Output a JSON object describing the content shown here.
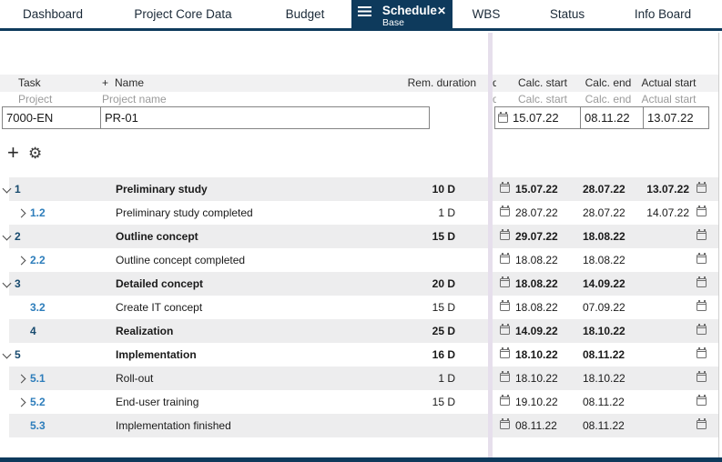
{
  "colors": {
    "navy": "#0e3a5c",
    "splitter": "#e6dfec",
    "row_alt": "#ededee",
    "id_parent_blue": "#174a6e",
    "id_child_blue": "#2d7dbb"
  },
  "icons": {
    "menu": "menu",
    "close": "✕",
    "add": "+",
    "settings": "⚙",
    "calendar": "calendar",
    "chevron_down": "chevron-down",
    "chevron_right": "chevron-right"
  },
  "tabs": [
    {
      "label": "Dashboard"
    },
    {
      "label": "Project Core Data"
    },
    {
      "label": "Budget"
    },
    {
      "label": "Schedule",
      "sublabel": "Base",
      "active": true
    },
    {
      "label": "WBS"
    },
    {
      "label": "Status"
    },
    {
      "label": "Info Board"
    }
  ],
  "header": {
    "task": "Task",
    "plus": "+",
    "name": "Name",
    "rem_duration": "Rem. duration",
    "clipped_column_text": "d",
    "calc_start": "Calc. start",
    "calc_end": "Calc. end",
    "actual_start": "Actual start"
  },
  "subheader": {
    "project": "Project",
    "project_name": "Project name",
    "calc_start": "Calc. start",
    "calc_end": "Calc. end",
    "actual_start": "Actual start"
  },
  "project_row": {
    "id": "7000-EN",
    "name": "PR-01",
    "calc_start": "15.07.22",
    "calc_end": "08.11.22",
    "actual_start": "13.07.22"
  },
  "tasks": [
    {
      "id": "1",
      "name": "Preliminary study",
      "duration": "10 D",
      "calc_start": "15.07.22",
      "calc_end": "28.07.22",
      "actual_start": "13.07.22",
      "level": 1,
      "chevron": "down",
      "bold": true
    },
    {
      "id": "1.2",
      "name": "Preliminary study completed",
      "duration": "1 D",
      "calc_start": "28.07.22",
      "calc_end": "28.07.22",
      "actual_start": "14.07.22",
      "level": 2,
      "chevron": "right",
      "bold": false
    },
    {
      "id": "2",
      "name": "Outline concept",
      "duration": "15 D",
      "calc_start": "29.07.22",
      "calc_end": "18.08.22",
      "actual_start": "",
      "level": 1,
      "chevron": "down",
      "bold": true
    },
    {
      "id": "2.2",
      "name": "Outline concept completed",
      "duration": "",
      "calc_start": "18.08.22",
      "calc_end": "18.08.22",
      "actual_start": "",
      "level": 2,
      "chevron": "right",
      "bold": false
    },
    {
      "id": "3",
      "name": "Detailed concept",
      "duration": "20 D",
      "calc_start": "18.08.22",
      "calc_end": "14.09.22",
      "actual_start": "",
      "level": 1,
      "chevron": "down",
      "bold": true
    },
    {
      "id": "3.2",
      "name": "Create IT concept",
      "duration": "15 D",
      "calc_start": "18.08.22",
      "calc_end": "07.09.22",
      "actual_start": "",
      "level": 2,
      "chevron": "none",
      "bold": false
    },
    {
      "id": "4",
      "name": "Realization",
      "duration": "25 D",
      "calc_start": "14.09.22",
      "calc_end": "18.10.22",
      "actual_start": "",
      "level": 1,
      "chevron": "none",
      "bold": true
    },
    {
      "id": "5",
      "name": "Implementation",
      "duration": "16 D",
      "calc_start": "18.10.22",
      "calc_end": "08.11.22",
      "actual_start": "",
      "level": 1,
      "chevron": "down",
      "bold": true
    },
    {
      "id": "5.1",
      "name": "Roll-out",
      "duration": "1 D",
      "calc_start": "18.10.22",
      "calc_end": "18.10.22",
      "actual_start": "",
      "level": 2,
      "chevron": "right",
      "bold": false
    },
    {
      "id": "5.2",
      "name": "End-user training",
      "duration": "15 D",
      "calc_start": "19.10.22",
      "calc_end": "08.11.22",
      "actual_start": "",
      "level": 2,
      "chevron": "right",
      "bold": false
    },
    {
      "id": "5.3",
      "name": "Implementation finished",
      "duration": "",
      "calc_start": "08.11.22",
      "calc_end": "08.11.22",
      "actual_start": "",
      "level": 2,
      "chevron": "none",
      "bold": false
    }
  ]
}
